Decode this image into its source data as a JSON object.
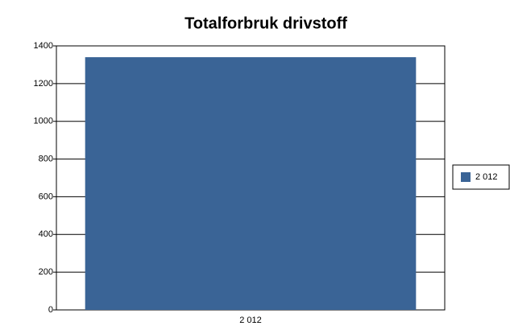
{
  "chart_data": {
    "type": "bar",
    "title": "Totalforbruk drivstoff",
    "categories": [
      "2 012"
    ],
    "series": [
      {
        "name": "2 012",
        "color": "#3a6496",
        "values": [
          1340
        ]
      }
    ],
    "ylim": [
      0,
      1400
    ],
    "yticks": [
      0,
      200,
      400,
      600,
      800,
      1000,
      1200,
      1400
    ],
    "grid": true,
    "legend": "right"
  }
}
